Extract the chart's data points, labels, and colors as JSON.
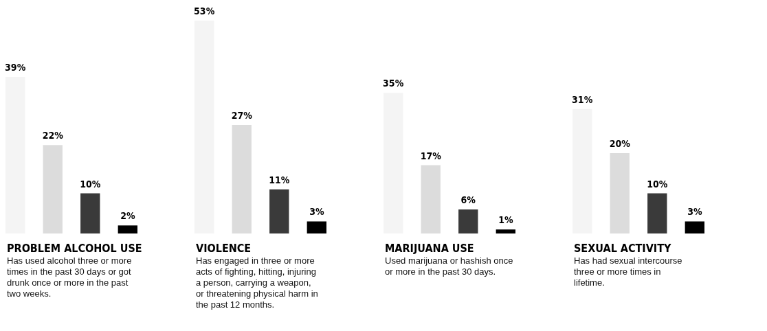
{
  "chart_data": {
    "type": "bar",
    "categories": [
      "PROBLEM ALCOHOL USE",
      "VIOLENCE",
      "MARIJUANA USE",
      "SEXUAL ACTIVITY"
    ],
    "series": [
      {
        "color": "#f4f4f4",
        "values": [
          39,
          53,
          35,
          31
        ],
        "value_labels": [
          "39%",
          "53%",
          "35%",
          "31%"
        ]
      },
      {
        "color": "#dcdcdc",
        "values": [
          22,
          27,
          17,
          20
        ],
        "value_labels": [
          "22%",
          "27%",
          "17%",
          "20%"
        ]
      },
      {
        "color": "#3a3a3a",
        "values": [
          10,
          11,
          6,
          10
        ],
        "value_labels": [
          "10%",
          "11%",
          "6%",
          "10%"
        ]
      },
      {
        "color": "#000000",
        "values": [
          2,
          3,
          1,
          3
        ],
        "value_labels": [
          "2%",
          "3%",
          "1%",
          "3%"
        ]
      }
    ],
    "annotations": [
      "Has used alcohol three or more\ntimes in the past 30 days or got\ndrunk once or more in the past\ntwo weeks.",
      "Has engaged in three or more\nacts of fighting, hitting, injuring\na person, carrying a weapon,\nor threatening physical harm in\nthe past 12 months.",
      "Used marijuana or hashish once\nor more in the past 30 days.",
      "Has had sexual intercourse\nthree or more times in\nlifetime."
    ]
  }
}
